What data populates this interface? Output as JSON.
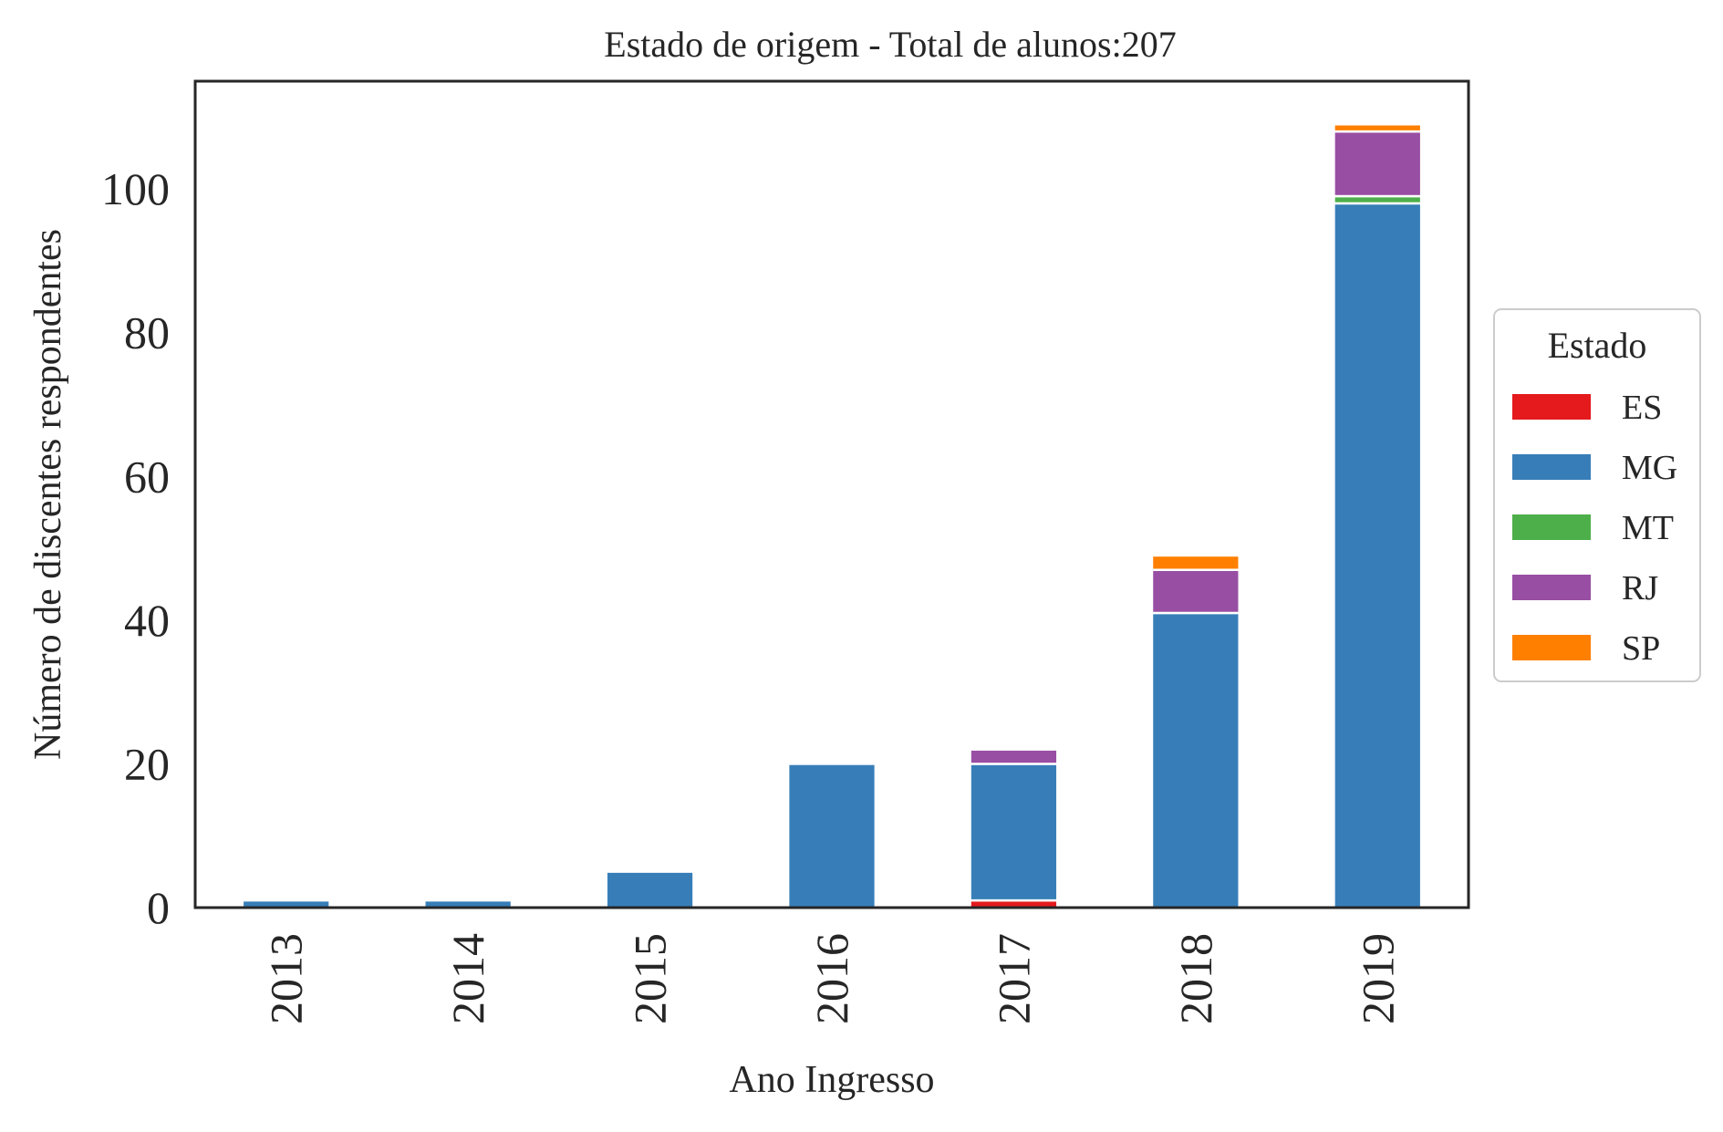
{
  "chart_data": {
    "type": "bar",
    "stacked": true,
    "title": "Estado de origem - Total de alunos:207",
    "xlabel": "Ano Ingresso",
    "ylabel": "Número de discentes respondentes",
    "categories": [
      "2013",
      "2014",
      "2015",
      "2016",
      "2017",
      "2018",
      "2019"
    ],
    "ylim": [
      0,
      115
    ],
    "yticks": [
      0,
      20,
      40,
      60,
      80,
      100
    ],
    "legend_title": "Estado",
    "legend_placement": "center-right-outside",
    "grid": false,
    "series": [
      {
        "name": "ES",
        "color": "#e41a1c",
        "values": [
          0,
          0,
          0,
          0,
          1,
          0,
          0
        ]
      },
      {
        "name": "MG",
        "color": "#377eb8",
        "values": [
          1,
          1,
          5,
          20,
          19,
          41,
          98
        ]
      },
      {
        "name": "MT",
        "color": "#4daf4a",
        "values": [
          0,
          0,
          0,
          0,
          0,
          0,
          1
        ]
      },
      {
        "name": "RJ",
        "color": "#984ea3",
        "values": [
          0,
          0,
          0,
          0,
          2,
          6,
          9
        ]
      },
      {
        "name": "SP",
        "color": "#ff7f00",
        "values": [
          0,
          0,
          0,
          0,
          0,
          2,
          1
        ]
      }
    ]
  }
}
